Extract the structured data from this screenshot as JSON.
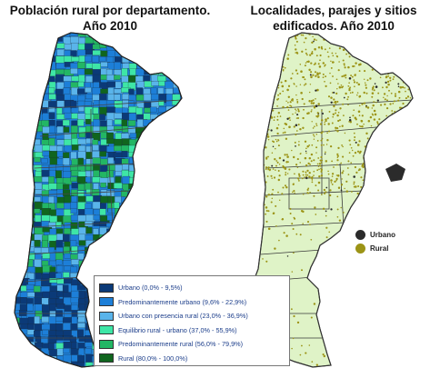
{
  "left_map": {
    "title_line1": "Población rural por departamento.",
    "title_line2": "Año 2010",
    "legend": [
      {
        "label": "Urbano (0,0% - 9,5%)",
        "color": "#0b3a78"
      },
      {
        "label": "Predominantemente urbano (9,6% - 22,9%)",
        "color": "#1d7fd8"
      },
      {
        "label": "Urbano con presencia rural (23,0% - 36,9%)",
        "color": "#5ab4ea"
      },
      {
        "label": "Equilibrio rural - urbano (37,0% - 55,9%)",
        "color": "#3ee6a6"
      },
      {
        "label": "Predominantemente rural (56,0% - 79,9%)",
        "color": "#23b664"
      },
      {
        "label": "Rural (80,0% - 100,0%)",
        "color": "#10651e"
      }
    ]
  },
  "right_map": {
    "title_line1": "Localidades, parajes y sitios",
    "title_line2": "edificados. Año 2010",
    "legend": [
      {
        "label": "Urbano",
        "color": "#2b2b2b"
      },
      {
        "label": "Rural",
        "color": "#9c9416"
      }
    ],
    "land_color": "#dff3c7",
    "border_color": "#3a3a3a"
  }
}
